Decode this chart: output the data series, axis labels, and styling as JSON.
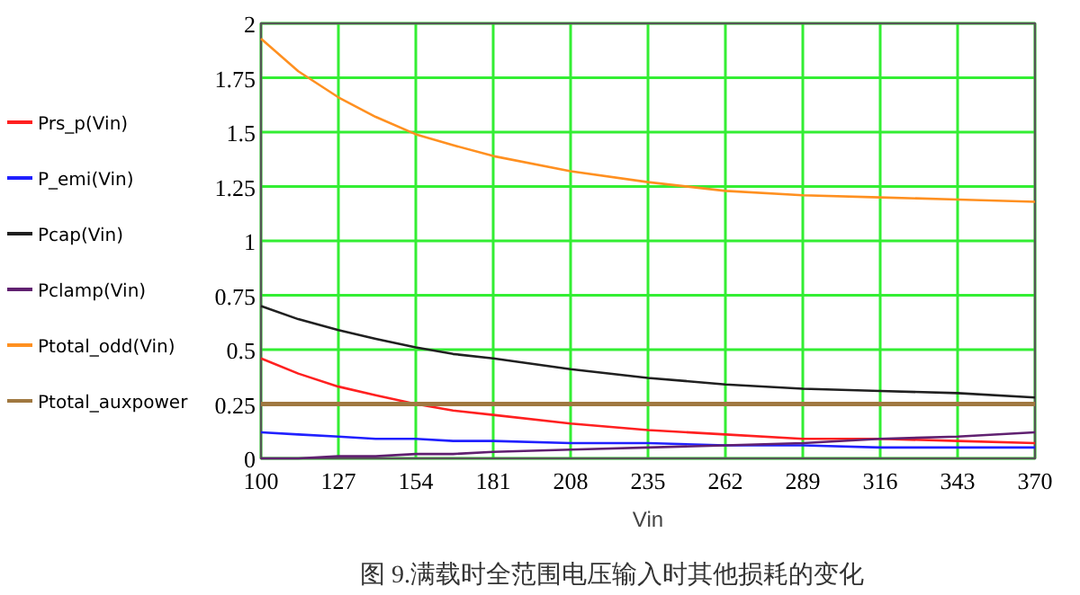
{
  "chart_data": {
    "type": "line",
    "xlabel": "Vin",
    "annotations": [
      "图 9.满载时全范围电压输入时其他损耗的变化"
    ],
    "x": [
      100,
      113,
      127,
      140,
      154,
      167,
      181,
      208,
      235,
      262,
      289,
      316,
      343,
      370
    ],
    "xlim": [
      100,
      370
    ],
    "xticks": [
      100,
      127,
      154,
      181,
      208,
      235,
      262,
      289,
      316,
      343,
      370
    ],
    "ylim": [
      0,
      2
    ],
    "yticks": [
      0,
      0.25,
      0.5,
      0.75,
      1,
      1.25,
      1.5,
      1.75,
      2
    ],
    "grid": true,
    "legend": "left",
    "line_style": "solid",
    "marker": "none",
    "series": [
      {
        "name": "Prs_p(Vin)",
        "color": "#ff2020",
        "values": [
          0.46,
          0.39,
          0.33,
          0.29,
          0.25,
          0.22,
          0.2,
          0.16,
          0.13,
          0.11,
          0.09,
          0.09,
          0.08,
          0.07
        ]
      },
      {
        "name": "P_emi(Vin)",
        "color": "#2020ff",
        "values": [
          0.12,
          0.11,
          0.1,
          0.09,
          0.09,
          0.08,
          0.08,
          0.07,
          0.07,
          0.06,
          0.06,
          0.05,
          0.05,
          0.05
        ]
      },
      {
        "name": "Pcap(Vin)",
        "color": "#202020",
        "values": [
          0.7,
          0.64,
          0.59,
          0.55,
          0.51,
          0.48,
          0.46,
          0.41,
          0.37,
          0.34,
          0.32,
          0.31,
          0.3,
          0.28
        ]
      },
      {
        "name": "Pclamp(Vin)",
        "color": "#602070",
        "values": [
          0,
          0,
          0.01,
          0.01,
          0.02,
          0.02,
          0.03,
          0.04,
          0.05,
          0.06,
          0.07,
          0.09,
          0.1,
          0.12
        ]
      },
      {
        "name": "Ptotal_odd(Vin)",
        "color": "#ff9020",
        "values": [
          1.93,
          1.78,
          1.66,
          1.57,
          1.49,
          1.44,
          1.39,
          1.32,
          1.27,
          1.23,
          1.21,
          1.2,
          1.19,
          1.18
        ]
      },
      {
        "name": "Ptotal_auxpower",
        "color": "#a07840",
        "values": [
          0.25,
          0.25,
          0.25,
          0.25,
          0.25,
          0.25,
          0.25,
          0.25,
          0.25,
          0.25,
          0.25,
          0.25,
          0.25,
          0.25
        ]
      }
    ]
  }
}
